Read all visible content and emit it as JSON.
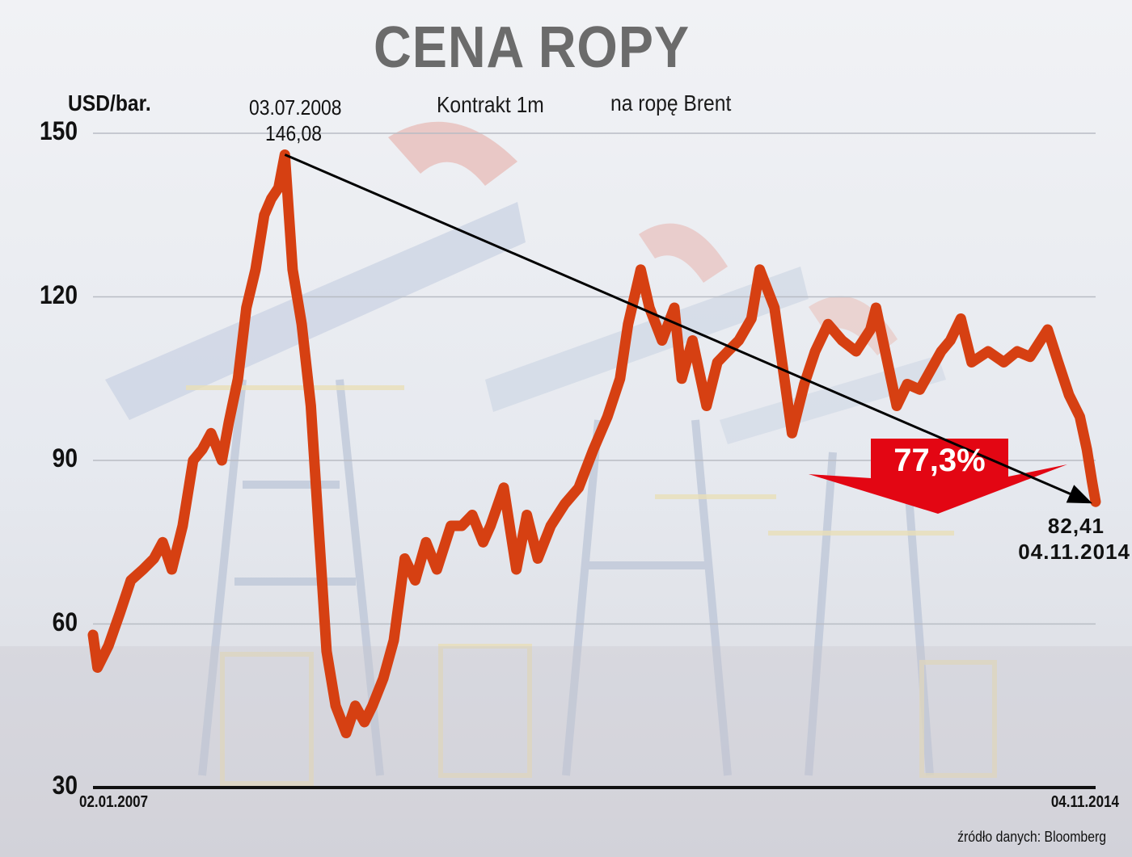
{
  "title": "CENA ROPY",
  "unit": "USD/bar.",
  "subtitle_part1": "Kontrakt 1m",
  "subtitle_part2": "na ropę Brent",
  "annotations": {
    "peak_date": "03.07.2008",
    "peak_value": "146,08",
    "end_value": "82,41",
    "end_date": "04.11.2014",
    "decline_label": "77,3%"
  },
  "y_ticks": [
    "150",
    "120",
    "90",
    "60",
    "30"
  ],
  "x_ticks": {
    "start": "02.01.2007",
    "end": "04.11.2014"
  },
  "source": "źródło danych: Bloomberg",
  "colors": {
    "line": "#d64012",
    "arrow_badge": "#e30613",
    "title": "#6b6b6b",
    "trend": "#000000"
  },
  "chart_data": {
    "type": "line",
    "title": "CENA ROPY",
    "subtitle": "Kontrakt 1m na ropę Brent",
    "xlabel": "",
    "ylabel": "USD/bar.",
    "ylim": [
      30,
      150
    ],
    "yticks": [
      30,
      60,
      90,
      120,
      150
    ],
    "xlim": [
      "2007-01-02",
      "2014-11-04"
    ],
    "grid": true,
    "legend": "none",
    "series": [
      {
        "name": "Brent 1M (USD/bar.)",
        "x": [
          "2007-01-02",
          "2007-01-15",
          "2007-02-15",
          "2007-03-20",
          "2007-04-20",
          "2007-05-25",
          "2007-06-25",
          "2007-07-20",
          "2007-08-15",
          "2007-09-15",
          "2007-10-15",
          "2007-11-10",
          "2007-12-05",
          "2008-01-05",
          "2008-01-25",
          "2008-02-20",
          "2008-03-15",
          "2008-04-10",
          "2008-05-05",
          "2008-05-25",
          "2008-06-15",
          "2008-07-03",
          "2008-07-25",
          "2008-08-20",
          "2008-09-15",
          "2008-10-10",
          "2008-10-30",
          "2008-11-25",
          "2008-12-25",
          "2009-01-20",
          "2009-02-15",
          "2009-03-10",
          "2009-04-10",
          "2009-05-10",
          "2009-06-10",
          "2009-07-10",
          "2009-08-10",
          "2009-09-10",
          "2009-10-20",
          "2009-11-20",
          "2009-12-20",
          "2010-01-20",
          "2010-02-10",
          "2010-03-20",
          "2010-04-25",
          "2010-05-25",
          "2010-06-25",
          "2010-08-01",
          "2010-09-10",
          "2010-10-20",
          "2010-12-01",
          "2011-01-10",
          "2011-02-15",
          "2011-03-10",
          "2011-04-15",
          "2011-05-10",
          "2011-06-15",
          "2011-07-20",
          "2011-08-10",
          "2011-09-10",
          "2011-10-20",
          "2011-11-20",
          "2011-12-20",
          "2012-01-20",
          "2012-02-25",
          "2012-03-20",
          "2012-05-01",
          "2012-06-20",
          "2012-07-25",
          "2012-08-25",
          "2012-10-01",
          "2012-11-10",
          "2012-12-20",
          "2013-01-30",
          "2013-02-15",
          "2013-04-15",
          "2013-05-15",
          "2013-06-20",
          "2013-08-20",
          "2013-09-15",
          "2013-10-15",
          "2013-11-15",
          "2014-01-01",
          "2014-02-15",
          "2014-03-25",
          "2014-05-01",
          "2014-06-20",
          "2014-07-20",
          "2014-08-20",
          "2014-09-20",
          "2014-10-10",
          "2014-10-25",
          "2014-11-04"
        ],
        "values": [
          58,
          52,
          56,
          62,
          68,
          70,
          72,
          75,
          70,
          78,
          90,
          92,
          95,
          90,
          97,
          105,
          118,
          125,
          135,
          138,
          140,
          146.08,
          125,
          115,
          100,
          75,
          55,
          45,
          40,
          45,
          42,
          45,
          50,
          57,
          72,
          68,
          75,
          70,
          78,
          78,
          80,
          75,
          78,
          85,
          70,
          80,
          72,
          78,
          82,
          85,
          92,
          98,
          105,
          115,
          125,
          118,
          112,
          118,
          105,
          112,
          100,
          108,
          110,
          112,
          116,
          125,
          118,
          95,
          104,
          110,
          115,
          112,
          110,
          114,
          118,
          100,
          104,
          103,
          110,
          112,
          116,
          108,
          110,
          108,
          110,
          109,
          114,
          108,
          102,
          98,
          92,
          86,
          82.41
        ]
      }
    ],
    "annotations": [
      {
        "x": "2008-07-03",
        "y": 146.08,
        "text": "03.07.2008 146,08"
      },
      {
        "x": "2014-11-04",
        "y": 82.41,
        "text": "82,41 04.11.2014"
      },
      {
        "type": "trend_arrow",
        "from": [
          "2008-07-03",
          146.08
        ],
        "to": [
          "2014-11-04",
          82.41
        ]
      },
      {
        "type": "badge",
        "text": "77,3%"
      }
    ]
  }
}
